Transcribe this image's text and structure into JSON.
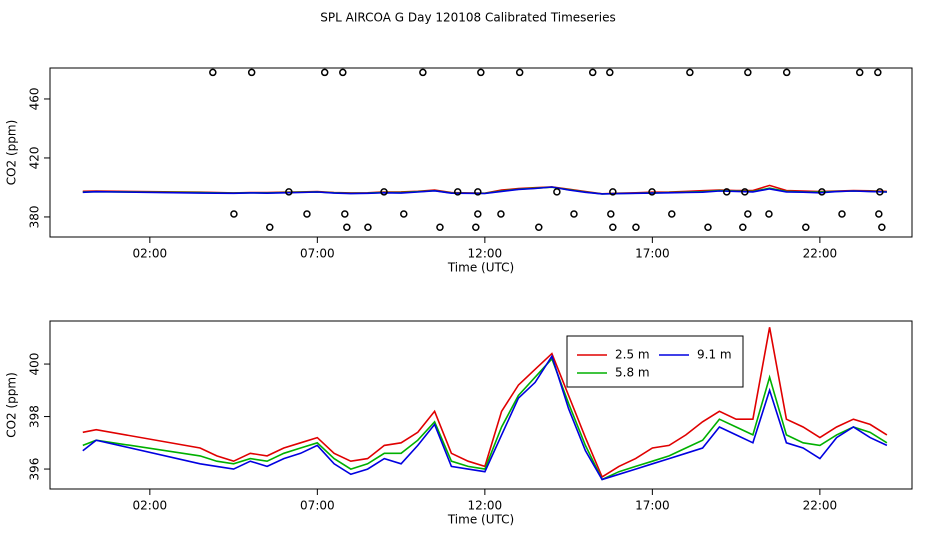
{
  "chart_data": [
    {
      "type": "line",
      "title": "SPL AIRCOA G  Day 120108  Calibrated Timeseries",
      "x_label": "Time (UTC)",
      "y_label": "CO2 (ppm)",
      "xlim": [
        -0.98,
        24.75
      ],
      "ylim": [
        366.4,
        481
      ],
      "xticks": [
        {
          "value": 2,
          "label": "02:00"
        },
        {
          "value": 7,
          "label": "07:00"
        },
        {
          "value": 12,
          "label": "12:00"
        },
        {
          "value": 17,
          "label": "17:00"
        },
        {
          "value": 22,
          "label": "22:00"
        }
      ],
      "yticks": [
        380,
        420,
        460
      ],
      "x": [
        0,
        0.4,
        3.5,
        4,
        4.5,
        5,
        5.5,
        6,
        6.5,
        7,
        7.5,
        8,
        8.5,
        9,
        9.5,
        10,
        10.5,
        11,
        11.5,
        12,
        12.5,
        13,
        13.5,
        14,
        14.5,
        15,
        15.5,
        16,
        16.5,
        17,
        17.5,
        18,
        18.5,
        19,
        19.5,
        20,
        20.5,
        21,
        21.5,
        22,
        22.5,
        23,
        23.5,
        24
      ],
      "series": [
        {
          "color": "#e00000",
          "values": [
            397.4,
            397.5,
            396.8,
            396.5,
            396.3,
            396.6,
            396.5,
            396.8,
            397.0,
            397.2,
            396.6,
            396.3,
            396.4,
            396.9,
            397.0,
            397.4,
            398.2,
            396.6,
            396.3,
            396.1,
            398.2,
            399.2,
            399.8,
            400.4,
            398.8,
            397.2,
            395.7,
            396.1,
            396.4,
            396.8,
            396.9,
            397.3,
            397.8,
            398.2,
            397.9,
            397.9,
            401.4,
            397.9,
            397.6,
            397.2,
            397.6,
            397.9,
            397.7,
            397.3
          ]
        },
        {
          "color": "#00b000",
          "values": [
            396.9,
            397.1,
            396.5,
            396.3,
            396.2,
            396.4,
            396.3,
            396.6,
            396.8,
            397.0,
            396.4,
            396.0,
            396.2,
            396.6,
            396.6,
            397.1,
            397.8,
            396.3,
            396.1,
            396.0,
            397.6,
            398.8,
            399.5,
            400.2,
            398.5,
            396.9,
            395.6,
            395.9,
            396.1,
            396.3,
            396.5,
            396.8,
            397.1,
            397.9,
            397.6,
            397.3,
            399.5,
            397.3,
            397.0,
            396.9,
            397.3,
            397.6,
            397.4,
            397.0
          ]
        },
        {
          "color": "#0000e0",
          "values": [
            396.7,
            397.1,
            396.2,
            396.1,
            396.0,
            396.3,
            396.1,
            396.4,
            396.6,
            396.9,
            396.2,
            395.8,
            396.0,
            396.4,
            396.2,
            396.9,
            397.7,
            396.1,
            396.0,
            395.9,
            397.3,
            398.7,
            399.3,
            400.3,
            398.3,
            396.7,
            395.6,
            395.8,
            396.0,
            396.2,
            396.4,
            396.6,
            396.8,
            397.6,
            397.3,
            397.0,
            399.0,
            397.0,
            396.8,
            396.4,
            397.2,
            397.6,
            397.2,
            396.9
          ]
        }
      ],
      "points": {
        "color": "#000000",
        "x": [
          3.88,
          5.04,
          7.22,
          7.76,
          10.15,
          11.88,
          13.04,
          15.22,
          15.73,
          18.12,
          19.85,
          21.01,
          23.19,
          23.73,
          6.15,
          8.99,
          11.19,
          11.79,
          14.15,
          15.82,
          16.99,
          19.22,
          19.76,
          22.06,
          23.79,
          4.51,
          6.69,
          7.82,
          9.58,
          11.79,
          12.48,
          14.66,
          15.76,
          17.58,
          19.85,
          20.48,
          22.66,
          23.76,
          5.58,
          7.88,
          8.51,
          10.66,
          11.73,
          13.61,
          15.82,
          16.51,
          18.66,
          19.7,
          21.58,
          23.85
        ],
        "values": [
          478,
          478,
          478,
          478,
          478,
          478,
          478,
          478,
          478,
          478,
          478,
          478,
          478,
          478,
          397,
          397,
          397,
          397,
          397,
          397,
          397,
          397,
          397,
          397,
          397,
          382,
          382,
          382,
          382,
          382,
          382,
          382,
          382,
          382,
          382,
          382,
          382,
          382,
          373,
          373,
          373,
          373,
          373,
          373,
          373,
          373,
          373,
          373,
          373,
          373
        ]
      }
    },
    {
      "type": "line",
      "x_label": "Time (UTC)",
      "y_label": "CO2 (ppm)",
      "xlim": [
        -0.98,
        24.75
      ],
      "ylim": [
        395.24,
        401.64
      ],
      "xticks": [
        {
          "value": 2,
          "label": "02:00"
        },
        {
          "value": 7,
          "label": "07:00"
        },
        {
          "value": 12,
          "label": "12:00"
        },
        {
          "value": 17,
          "label": "17:00"
        },
        {
          "value": 22,
          "label": "22:00"
        }
      ],
      "yticks": [
        396,
        398,
        400
      ],
      "legend": "topright",
      "x": [
        0,
        0.4,
        3.5,
        4,
        4.5,
        5,
        5.5,
        6,
        6.5,
        7,
        7.5,
        8,
        8.5,
        9,
        9.5,
        10,
        10.5,
        11,
        11.5,
        12,
        12.5,
        13,
        13.5,
        14,
        14.5,
        15,
        15.5,
        16,
        16.5,
        17,
        17.5,
        18,
        18.5,
        19,
        19.5,
        20,
        20.5,
        21,
        21.5,
        22,
        22.5,
        23,
        23.5,
        24
      ],
      "series": [
        {
          "name": "2.5 m",
          "color": "#e00000",
          "values": [
            397.4,
            397.5,
            396.8,
            396.5,
            396.3,
            396.6,
            396.5,
            396.8,
            397.0,
            397.2,
            396.6,
            396.3,
            396.4,
            396.9,
            397.0,
            397.4,
            398.2,
            396.6,
            396.3,
            396.1,
            398.2,
            399.2,
            399.8,
            400.4,
            398.8,
            397.2,
            395.7,
            396.1,
            396.4,
            396.8,
            396.9,
            397.3,
            397.8,
            398.2,
            397.9,
            397.9,
            401.4,
            397.9,
            397.6,
            397.2,
            397.6,
            397.9,
            397.7,
            397.3
          ]
        },
        {
          "name": "5.8 m",
          "color": "#00b000",
          "values": [
            396.9,
            397.1,
            396.5,
            396.3,
            396.2,
            396.4,
            396.3,
            396.6,
            396.8,
            397.0,
            396.4,
            396.0,
            396.2,
            396.6,
            396.6,
            397.1,
            397.8,
            396.3,
            396.1,
            396.0,
            397.6,
            398.8,
            399.5,
            400.2,
            398.5,
            396.9,
            395.6,
            395.9,
            396.1,
            396.3,
            396.5,
            396.8,
            397.1,
            397.9,
            397.6,
            397.3,
            399.5,
            397.3,
            397.0,
            396.9,
            397.3,
            397.6,
            397.4,
            397.0
          ]
        },
        {
          "name": "9.1 m",
          "color": "#0000e0",
          "values": [
            396.7,
            397.1,
            396.2,
            396.1,
            396.0,
            396.3,
            396.1,
            396.4,
            396.6,
            396.9,
            396.2,
            395.8,
            396.0,
            396.4,
            396.2,
            396.9,
            397.7,
            396.1,
            396.0,
            395.9,
            397.3,
            398.7,
            399.3,
            400.3,
            398.3,
            396.7,
            395.6,
            395.8,
            396.0,
            396.2,
            396.4,
            396.6,
            396.8,
            397.6,
            397.3,
            397.0,
            399.0,
            397.0,
            396.8,
            396.4,
            397.2,
            397.6,
            397.2,
            396.9
          ]
        }
      ]
    }
  ]
}
